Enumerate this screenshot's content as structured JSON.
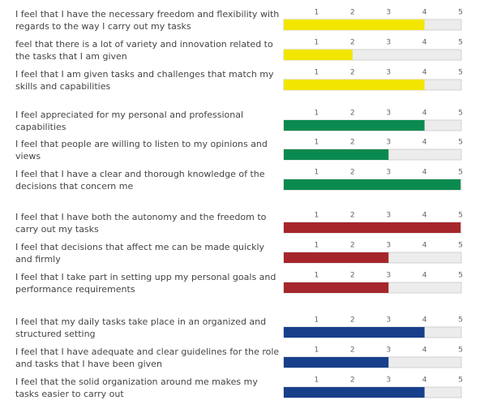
{
  "chart_data": {
    "type": "rating-bars",
    "xlim": [
      0,
      5
    ],
    "xticks": [
      1,
      2,
      3,
      4,
      5
    ],
    "groups": [
      {
        "color": "#f2e600",
        "categories": [
          "I feel that I have the necessary freedom and flexibility with regards to the way I carry out my tasks",
          "feel that there is a lot of variety and innovation related to the tasks that I am given",
          "I feel that I am given tasks and challenges that match my skills and capabilities"
        ],
        "values": [
          4,
          2,
          4
        ]
      },
      {
        "color": "#0b8a4f",
        "categories": [
          "I feel appreciated for my personal and professional capabilities",
          "I feel that people are willing to listen to my opinions and views",
          "I feel that I have a clear and thorough knowledge of the decisions that concern me"
        ],
        "values": [
          4,
          3,
          5
        ]
      },
      {
        "color": "#a5262b",
        "categories": [
          "I feel that I have both the autonomy and the freedom to carry out my tasks",
          "I feel that decisions that affect me can be made quickly and firmly",
          "I feel that I take part in setting upp my personal goals and performance requirements"
        ],
        "values": [
          5,
          3,
          3
        ]
      },
      {
        "color": "#173f8a",
        "categories": [
          "I feel that my daily tasks take place in an organized and structured setting",
          "I feel that I have adequate and clear guidelines for the role and tasks that I have been given",
          "I feel that the solid organization around me makes my tasks easier to carry out"
        ],
        "values": [
          4,
          3,
          4
        ]
      }
    ]
  }
}
